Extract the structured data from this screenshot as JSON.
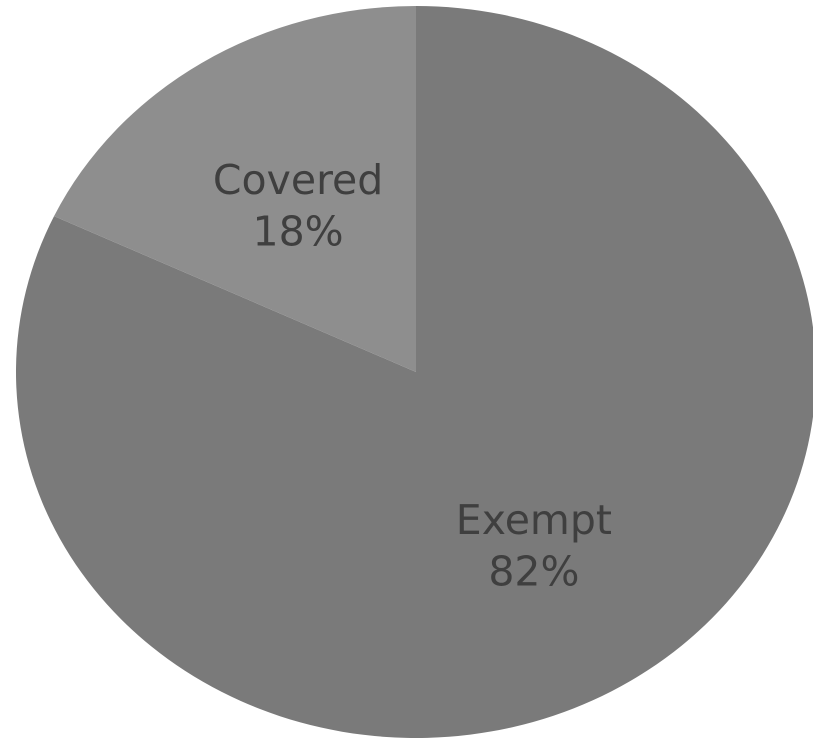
{
  "chart_data": {
    "type": "pie",
    "title": "",
    "slices": [
      {
        "label": "Exempt",
        "value": 82,
        "value_label": "82%",
        "color": "#7a7a7a"
      },
      {
        "label": "Covered",
        "value": 18,
        "value_label": "18%",
        "color": "#8e8e8e"
      }
    ],
    "start_angle_deg": 0,
    "direction": "clockwise",
    "legend": "none",
    "labels_inside_slices": true
  }
}
